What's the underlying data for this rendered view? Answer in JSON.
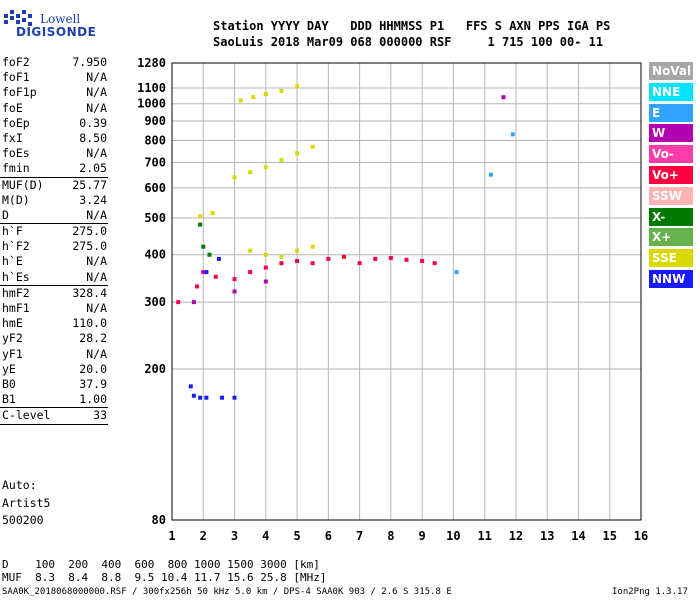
{
  "logo": {
    "line1": "Lowell",
    "line2": "DIGISONDE"
  },
  "header": {
    "line1": "Station YYYY DAY   DDD HHMMSS P1   FFS S AXN PPS IGA PS",
    "line2": "SaoLuis 2018 Mar09 068 000000 RSF     1 715 100 00- 11"
  },
  "params": [
    {
      "name": "foF2",
      "value": "7.950",
      "sep_after": false
    },
    {
      "name": "foF1",
      "value": "N/A",
      "sep_after": false
    },
    {
      "name": "foF1p",
      "value": "N/A",
      "sep_after": false
    },
    {
      "name": "foE",
      "value": "N/A",
      "sep_after": false
    },
    {
      "name": "foEp",
      "value": "0.39",
      "sep_after": false
    },
    {
      "name": "fxI",
      "value": "8.50",
      "sep_after": false
    },
    {
      "name": "foEs",
      "value": "N/A",
      "sep_after": false
    },
    {
      "name": "fmin",
      "value": "2.05",
      "sep_after": true
    },
    {
      "name": "MUF(D)",
      "value": "25.77",
      "sep_after": false
    },
    {
      "name": "M(D)",
      "value": "3.24",
      "sep_after": false
    },
    {
      "name": "D",
      "value": "N/A",
      "sep_after": true
    },
    {
      "name": "h`F",
      "value": "275.0",
      "sep_after": false
    },
    {
      "name": "h`F2",
      "value": "275.0",
      "sep_after": false
    },
    {
      "name": "h`E",
      "value": "N/A",
      "sep_after": false
    },
    {
      "name": "h`Es",
      "value": "N/A",
      "sep_after": true
    },
    {
      "name": "hmF2",
      "value": "328.4",
      "sep_after": false
    },
    {
      "name": "hmF1",
      "value": "N/A",
      "sep_after": false
    },
    {
      "name": "hmE",
      "value": "110.0",
      "sep_after": false
    },
    {
      "name": "yF2",
      "value": "28.2",
      "sep_after": false
    },
    {
      "name": "yF1",
      "value": "N/A",
      "sep_after": false
    },
    {
      "name": "yE",
      "value": "20.0",
      "sep_after": false
    },
    {
      "name": "B0",
      "value": "37.9",
      "sep_after": false
    },
    {
      "name": "B1",
      "value": "1.00",
      "sep_after": true
    },
    {
      "name": "C-level",
      "value": "33",
      "sep_after": true
    }
  ],
  "auto": {
    "line1": "Auto:",
    "line2": "Artist5",
    "line3": "500200"
  },
  "legend": [
    {
      "label": "NoVal",
      "color": "#a6a6a6"
    },
    {
      "label": "NNE",
      "color": "#00e5ff"
    },
    {
      "label": "E",
      "color": "#33a1ff"
    },
    {
      "label": "W",
      "color": "#b000b0"
    },
    {
      "label": "Vo-",
      "color": "#ff3ca8"
    },
    {
      "label": "Vo+",
      "color": "#ff0040"
    },
    {
      "label": "SSW",
      "color": "#ffb3b3"
    },
    {
      "label": "X-",
      "color": "#007a00"
    },
    {
      "label": "X+",
      "color": "#66b34d"
    },
    {
      "label": "SSE",
      "color": "#d9d900"
    },
    {
      "label": "NNW",
      "color": "#1a1aff"
    }
  ],
  "footer": {
    "d_row": "D    100  200  400  600  800 1000 1500 3000 [km]",
    "muf_row": "MUF  8.3  8.4  8.8  9.5 10.4 11.7 15.6 25.8 [MHz]",
    "file_info": "SAA0K_2018068000000.RSF / 300fx256h 50 kHz 5.0 km / DPS-4 SAA0K 903 / 2.6 S 315.8 E",
    "version": "Ion2Png 1.3.17"
  },
  "chart_data": {
    "type": "scatter",
    "xlim": [
      1,
      16
    ],
    "ylim": [
      80,
      1280
    ],
    "x_ticks": [
      1,
      2,
      3,
      4,
      5,
      6,
      7,
      8,
      9,
      10,
      11,
      12,
      13,
      14,
      15,
      16
    ],
    "y_ticks": [
      80,
      200,
      300,
      400,
      500,
      600,
      700,
      800,
      900,
      1000,
      1100,
      1280
    ],
    "y_scale": "log",
    "grid": true,
    "series": [
      {
        "name": "Vo+",
        "color": "#ff0040",
        "points": [
          [
            1.2,
            300
          ],
          [
            1.8,
            330
          ],
          [
            2.4,
            350
          ],
          [
            3.0,
            345
          ],
          [
            3.5,
            360
          ],
          [
            4.0,
            370
          ],
          [
            4.5,
            380
          ],
          [
            5.0,
            385
          ],
          [
            5.5,
            380
          ],
          [
            6.0,
            390
          ],
          [
            6.5,
            395
          ],
          [
            7.0,
            380
          ],
          [
            7.5,
            390
          ],
          [
            8.0,
            392
          ],
          [
            8.5,
            388
          ],
          [
            9.0,
            385
          ],
          [
            9.4,
            380
          ]
        ]
      },
      {
        "name": "SSE",
        "color": "#d9d900",
        "points": [
          [
            1.9,
            505
          ],
          [
            2.3,
            515
          ],
          [
            3.0,
            640
          ],
          [
            3.5,
            660
          ],
          [
            4.0,
            680
          ],
          [
            4.5,
            710
          ],
          [
            5.0,
            740
          ],
          [
            5.5,
            770
          ],
          [
            3.2,
            1020
          ],
          [
            3.6,
            1040
          ],
          [
            4.0,
            1060
          ],
          [
            4.5,
            1080
          ],
          [
            5.0,
            1110
          ],
          [
            3.5,
            410
          ],
          [
            4.0,
            400
          ],
          [
            4.5,
            395
          ],
          [
            5.0,
            410
          ],
          [
            5.5,
            420
          ]
        ]
      },
      {
        "name": "NNW",
        "color": "#1a1aff",
        "points": [
          [
            1.6,
            180
          ],
          [
            1.7,
            170
          ],
          [
            1.9,
            168
          ],
          [
            2.1,
            168
          ],
          [
            2.6,
            168
          ],
          [
            3.0,
            168
          ],
          [
            2.5,
            390
          ],
          [
            2.1,
            360
          ]
        ]
      },
      {
        "name": "X-",
        "color": "#007a00",
        "points": [
          [
            1.9,
            480
          ],
          [
            2.0,
            420
          ],
          [
            2.2,
            400
          ]
        ]
      },
      {
        "name": "W",
        "color": "#b000b0",
        "points": [
          [
            1.7,
            300
          ],
          [
            2.0,
            360
          ],
          [
            3.0,
            320
          ],
          [
            4.0,
            340
          ],
          [
            11.6,
            1040
          ]
        ]
      },
      {
        "name": "E",
        "color": "#33a1ff",
        "points": [
          [
            10.1,
            360
          ],
          [
            11.2,
            650
          ],
          [
            11.9,
            830
          ]
        ]
      }
    ]
  }
}
